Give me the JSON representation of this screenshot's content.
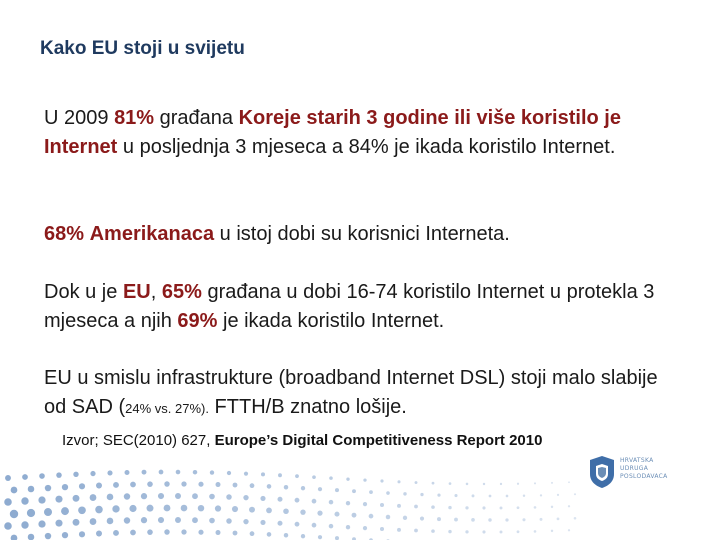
{
  "title": "Kako EU stoji u svijetu",
  "p1": {
    "t1": "U 2009 ",
    "pct": "81%",
    "t2": " građana ",
    "red1": "Koreje starih 3 godine ili više koristilo je Internet",
    "t3": " u posljednja 3 mjeseca a 84% je ikada koristilo Internet."
  },
  "p2": {
    "pct": "68%",
    "red": "Amerikanaca",
    "t1": " u istoj dobi su korisnici Interneta."
  },
  "p3": {
    "t1": "Dok u je ",
    "eu": "EU",
    "t2": ", ",
    "pct1": "65%",
    "t3": " građana u dobi 16-74 koristilo Internet u protekla 3 mjeseca a njih ",
    "pct2": "69%",
    "t4": " je ikada koristilo Internet."
  },
  "p4": {
    "t1": "EU u smislu infrastrukture (broadband Internet DSL) stoji malo slabije od SAD (",
    "small": "24% vs. 27%).",
    "t2": " FTTH/B znatno lošije."
  },
  "source": {
    "prefix": "Izvor; SEC(2010) 627, ",
    "report": "Europe’s Digital Competitiveness Report 2010"
  },
  "logo": {
    "line1": "HRVATSKA",
    "line2": "UDRUGA",
    "line3": "POSLODAVACA"
  },
  "colors": {
    "accent_red": "#8b1a1a",
    "title_blue": "#1f3a5f",
    "dots_blue": "#7a9cc8"
  }
}
